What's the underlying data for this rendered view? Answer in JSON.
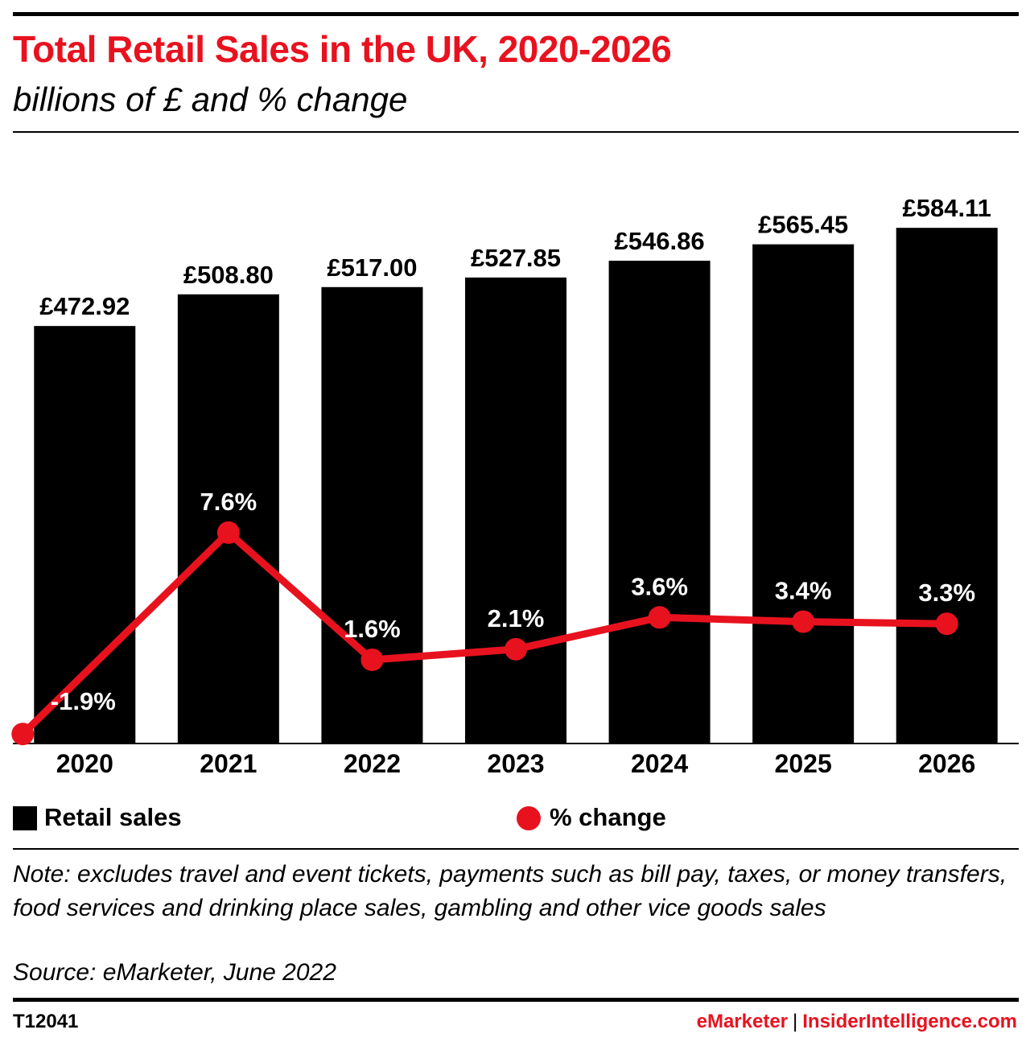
{
  "header": {
    "title": "Total Retail Sales in the UK, 2020-2026",
    "subtitle": "billions of £ and % change"
  },
  "chart_data": {
    "type": "bar",
    "categories": [
      "2020",
      "2021",
      "2022",
      "2023",
      "2024",
      "2025",
      "2026"
    ],
    "series": [
      {
        "name": "Retail sales",
        "type": "bar",
        "values": [
          472.92,
          508.8,
          517.0,
          527.85,
          546.86,
          565.45,
          584.11
        ],
        "labels": [
          "£472.92",
          "£508.80",
          "£517.00",
          "£527.85",
          "£546.86",
          "£565.45",
          "£584.11"
        ],
        "color": "#000000"
      },
      {
        "name": "% change",
        "type": "line",
        "values": [
          -1.9,
          7.6,
          1.6,
          2.1,
          3.6,
          3.4,
          3.3
        ],
        "labels": [
          "-1.9%",
          "7.6%",
          "1.6%",
          "2.1%",
          "3.6%",
          "3.4%",
          "3.3%"
        ],
        "color": "#e8121f"
      }
    ],
    "bar_ylim": [
      0,
      600
    ],
    "line_ylim": [
      -2.5,
      12
    ],
    "grid": false,
    "legend_position": "bottom"
  },
  "legend": {
    "sales_label": "Retail sales",
    "change_label": "% change"
  },
  "note": "Note: excludes travel and event tickets, payments such as bill pay, taxes, or money transfers, food services and drinking place sales, gambling and other vice goods sales",
  "source": "Source: eMarketer, June 2022",
  "footer": {
    "chart_id": "T12041",
    "brand_emarketer": "eMarketer",
    "separator": "|",
    "brand_insider": "InsiderIntelligence.com"
  },
  "colors": {
    "accent": "#e8121f",
    "bars": "#000000"
  }
}
